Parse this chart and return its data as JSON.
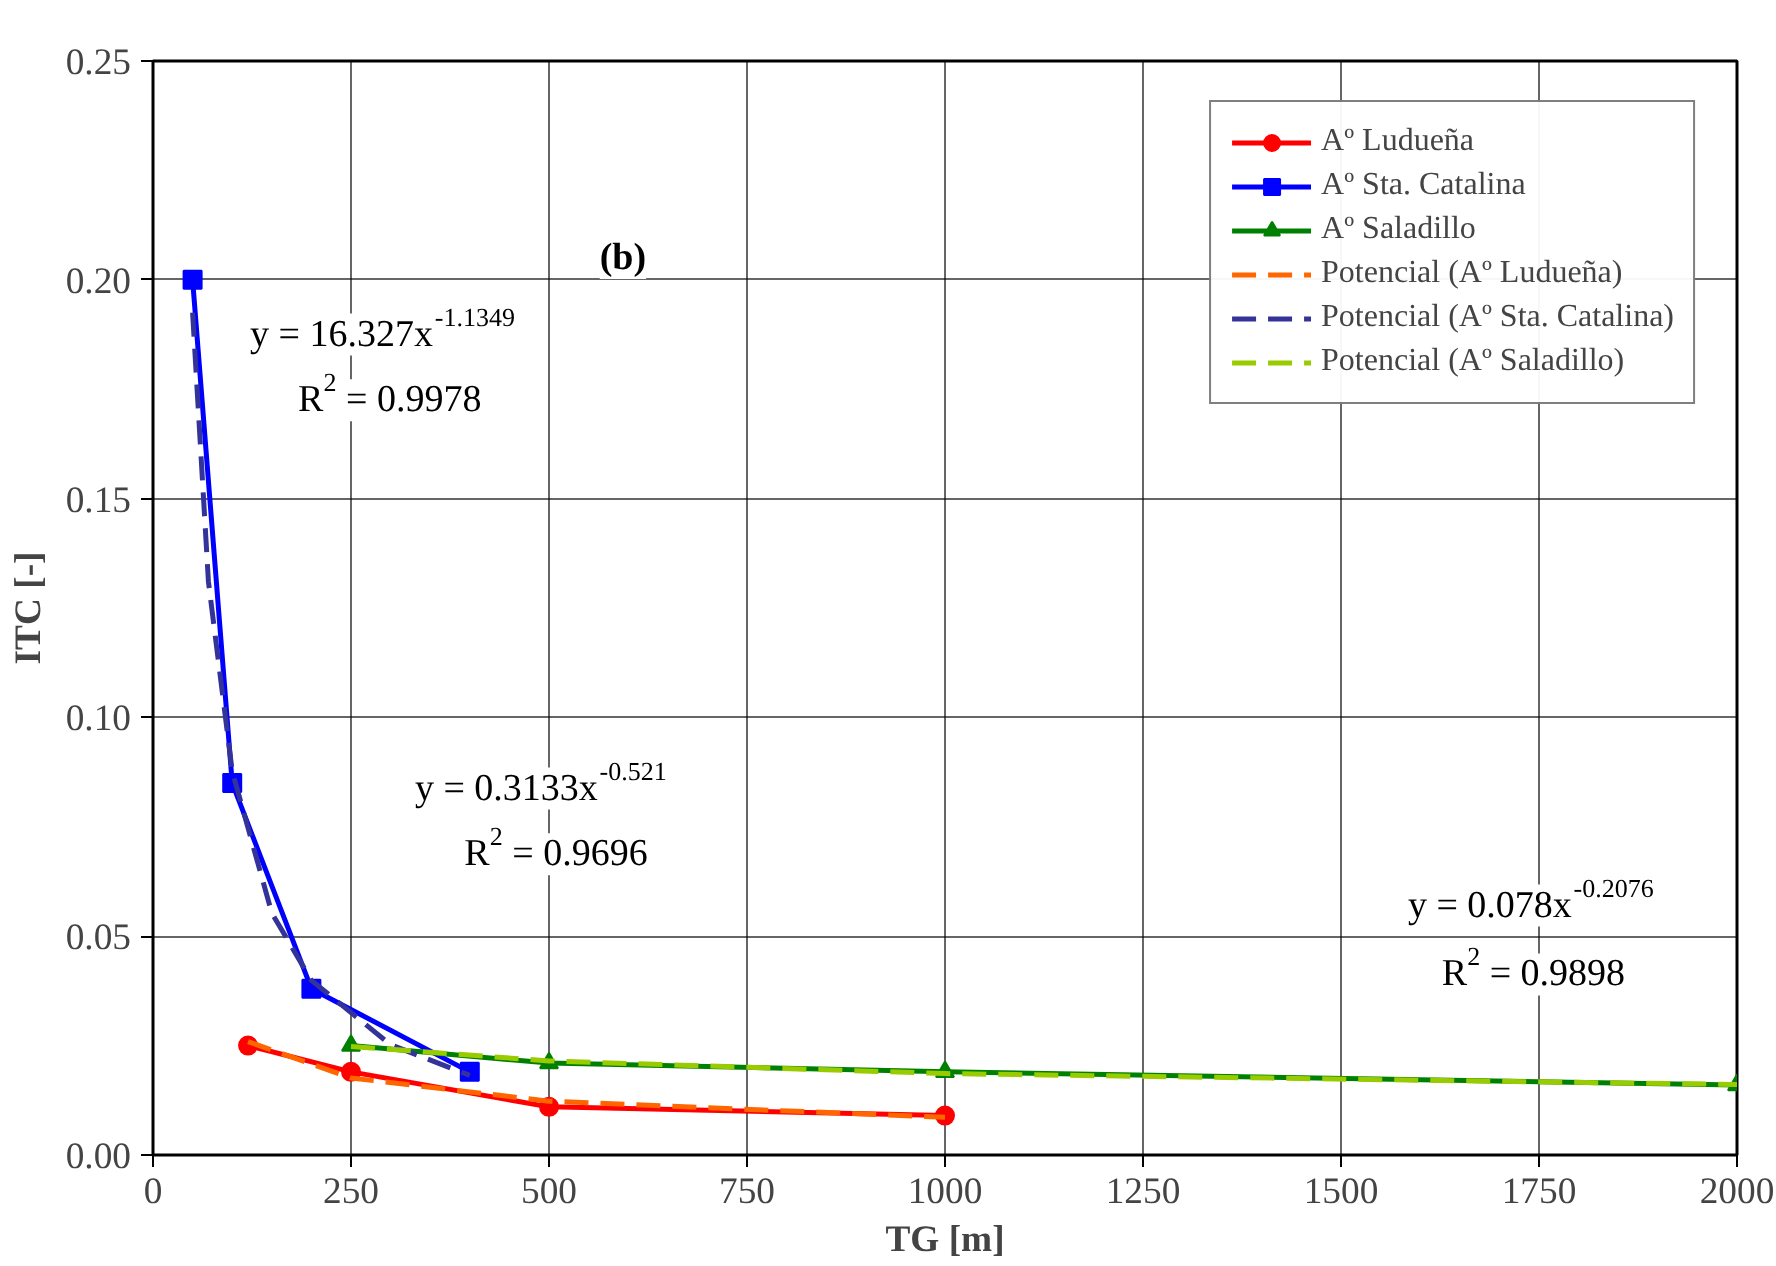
{
  "chart_data": {
    "type": "line",
    "xlabel": "TG [m]",
    "ylabel": "ITC [-]",
    "xlim": [
      0,
      2000
    ],
    "xticks": [
      0,
      250,
      500,
      750,
      1000,
      1250,
      1500,
      1750,
      2000
    ],
    "ylim": [
      0,
      0.25
    ],
    "yticks": [
      {
        "value": 0,
        "label": "0.00"
      },
      {
        "value": 0.05,
        "label": "0.05"
      },
      {
        "value": 0.1,
        "label": "0.10"
      },
      {
        "value": 0.15,
        "label": "0.15"
      },
      {
        "value": 0.2,
        "label": "0.20"
      },
      {
        "value": 0.25,
        "label": "0.25"
      }
    ],
    "grid": true,
    "legend": "top right",
    "series": [
      {
        "name": "Aº Ludueña",
        "color": "#ff0000",
        "marker": "circle",
        "line_style": "solid",
        "x": [
          120,
          250,
          500,
          1000
        ],
        "values": [
          0.025,
          0.019,
          0.011,
          0.009
        ]
      },
      {
        "name": "Aº Sta. Catalina",
        "color": "#0000ff",
        "marker": "square",
        "line_style": "solid",
        "x": [
          50,
          100,
          200,
          400
        ],
        "values": [
          0.2,
          0.085,
          0.038,
          0.019
        ]
      },
      {
        "name": "Aº Saladillo",
        "color": "#008000",
        "marker": "triangle",
        "line_style": "solid",
        "x": [
          250,
          500,
          1000,
          2000
        ],
        "values": [
          0.025,
          0.021,
          0.019,
          0.016
        ]
      },
      {
        "name": "Potencial (Aº Ludueña)",
        "color": "#ff6600",
        "marker": "none",
        "line_style": "dashed",
        "x": [
          120,
          250,
          500,
          1000
        ],
        "values": [
          0.0259,
          0.0176,
          0.0123,
          0.0086
        ]
      },
      {
        "name": "Potencial (Aº Sta. Catalina)",
        "color": "#333399",
        "marker": "none",
        "line_style": "dashed",
        "x": [
          50,
          70,
          100,
          150,
          200,
          300,
          400
        ],
        "values": [
          0.1925,
          0.131,
          0.0877,
          0.0553,
          0.0399,
          0.0252,
          0.0182
        ]
      },
      {
        "name": "Potencial (Aº Saladillo)",
        "color": "#99cc00",
        "marker": "none",
        "line_style": "dashed",
        "x": [
          250,
          500,
          1000,
          2000
        ],
        "values": [
          0.0248,
          0.0215,
          0.0186,
          0.0161
        ]
      }
    ],
    "annotations": [
      "(b)",
      "y = 16.327x$^{-1.1349}$",
      "R$^{2}$ = 0.9978",
      "y = 0.3133x$^{-0.521}$",
      "R$^{2}$ = 0.9696",
      "y = 0.078x$^{-0.2076}$",
      "R$^{2}$ = 0.9898"
    ]
  }
}
